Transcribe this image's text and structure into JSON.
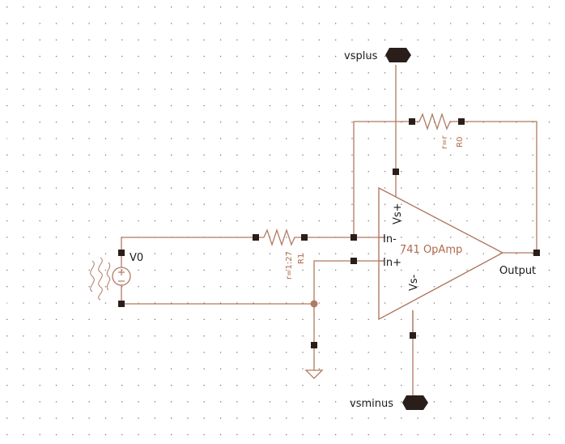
{
  "colors": {
    "wire": "#b07a62",
    "component": "#b07a62",
    "pin": "#2a1e1a",
    "pin_label": "#1a1a1a",
    "component_label": "#b06a48",
    "grid_dot": "#7a7a7a",
    "grid_dot_accent": "#f2a66a",
    "background": "#ffffff"
  },
  "pins": {
    "vsplus": "vsplus",
    "vsminus": "vsminus"
  },
  "opamp": {
    "name": "741 OpAmp",
    "in_minus": "In-",
    "in_plus": "In+",
    "vs_plus": "Vs+",
    "vs_minus": "Vs-",
    "output": "Output"
  },
  "source": {
    "name": "V0",
    "icon": "ac-source-icon"
  },
  "r0": {
    "name": "R0",
    "value": "r=r"
  },
  "r1": {
    "name": "R1",
    "value": "r=1:27"
  },
  "ground": {
    "icon": "ground-icon"
  }
}
